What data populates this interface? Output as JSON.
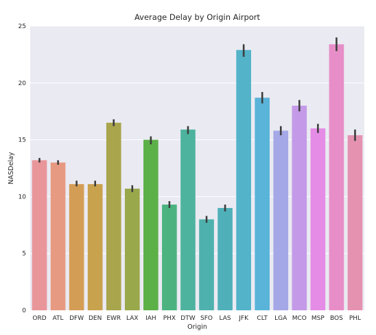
{
  "chart_data": {
    "type": "bar",
    "title": "Average Delay by Origin Airport",
    "xlabel": "Origin",
    "ylabel": "NASDelay",
    "ylim": [
      0,
      25
    ],
    "yticks": [
      0,
      5,
      10,
      15,
      20,
      25
    ],
    "grid": true,
    "categories": [
      "ORD",
      "ATL",
      "DFW",
      "DEN",
      "EWR",
      "LAX",
      "IAH",
      "PHX",
      "DTW",
      "SFO",
      "LAS",
      "JFK",
      "CLT",
      "LGA",
      "MCO",
      "MSP",
      "BOS",
      "PHL"
    ],
    "values": [
      13.2,
      13.0,
      11.1,
      11.1,
      16.5,
      10.7,
      15.0,
      9.3,
      15.9,
      8.0,
      9.0,
      22.9,
      18.7,
      15.8,
      18.0,
      16.0,
      23.4,
      15.4
    ],
    "error_low": [
      13.0,
      12.8,
      10.9,
      10.9,
      16.2,
      10.4,
      14.6,
      9.0,
      15.5,
      7.7,
      8.7,
      22.3,
      18.2,
      15.4,
      17.5,
      15.6,
      22.8,
      14.9
    ],
    "error_high": [
      13.4,
      13.2,
      11.4,
      11.4,
      16.8,
      11.0,
      15.3,
      9.6,
      16.2,
      8.3,
      9.3,
      23.4,
      19.2,
      16.2,
      18.5,
      16.4,
      24.0,
      15.9
    ],
    "colors": [
      "#e8969a",
      "#e79a82",
      "#d49d56",
      "#c9a24d",
      "#a8a54c",
      "#99a84b",
      "#5cb048",
      "#4cb380",
      "#4eb39e",
      "#4fb1ad",
      "#50b0b9",
      "#53b3c9",
      "#5ab3d9",
      "#a4a8e6",
      "#c49ae8",
      "#e48ce6",
      "#e78ec8",
      "#e592b1"
    ]
  }
}
